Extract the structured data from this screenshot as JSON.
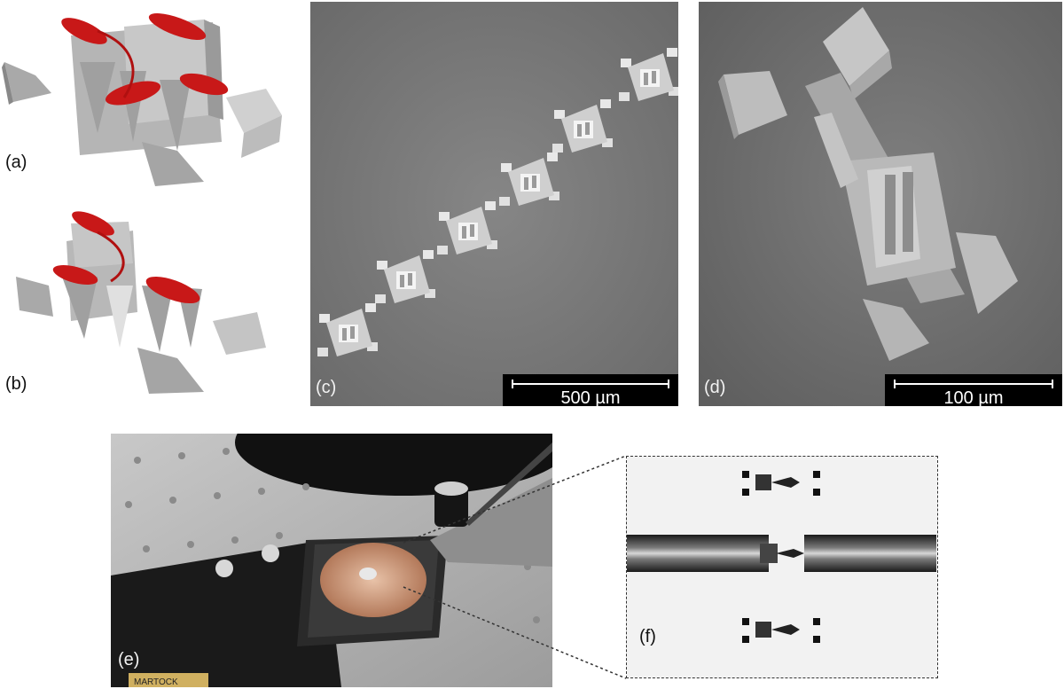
{
  "labels": {
    "a": "(a)",
    "b": "(b)",
    "c": "(c)",
    "d": "(d)",
    "e": "(e)",
    "f": "(f)"
  },
  "scalebars": {
    "c": "500 µm",
    "d": "100 µm"
  },
  "photo_e": {
    "brand_text": "MARTOCK"
  },
  "colors": {
    "render_gray": "#b9b9b9",
    "fiber_red": "#c81818",
    "sem_bg_c": "#7a7a7a",
    "sem_bg_d": "#6f6f6f"
  }
}
